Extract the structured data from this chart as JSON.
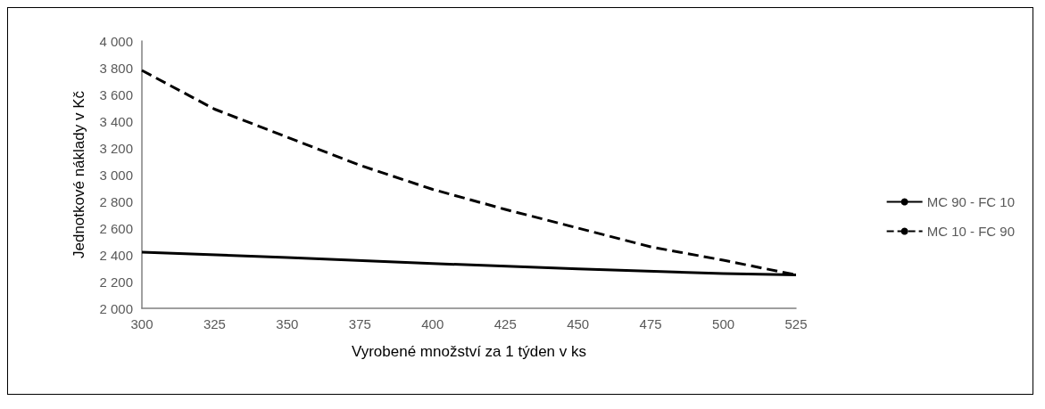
{
  "chart_data": {
    "type": "line",
    "xlabel": "Vyrobené množství za 1 týden v ks",
    "ylabel": "Jednotkové náklady v Kč",
    "xlim": [
      300,
      525
    ],
    "xticks": [
      300,
      325,
      350,
      375,
      400,
      425,
      450,
      475,
      500,
      525
    ],
    "ylim": [
      2000,
      4000
    ],
    "yticks": [
      {
        "value": 2000,
        "label": "2 000"
      },
      {
        "value": 2200,
        "label": "2 200"
      },
      {
        "value": 2400,
        "label": "2 400"
      },
      {
        "value": 2600,
        "label": "2 600"
      },
      {
        "value": 2800,
        "label": "2 800"
      },
      {
        "value": 3000,
        "label": "3 000"
      },
      {
        "value": 3200,
        "label": "3 200"
      },
      {
        "value": 3400,
        "label": "3 400"
      },
      {
        "value": 3600,
        "label": "3 600"
      },
      {
        "value": 3800,
        "label": "3 800"
      },
      {
        "value": 4000,
        "label": "4 000"
      }
    ],
    "grid": false,
    "legend": "right",
    "marker": "none",
    "series": [
      {
        "name": "MC 90 - FC 10",
        "color": "#000000",
        "line_style": "solid",
        "x": [
          300,
          350,
          400,
          450,
          500,
          525
        ],
        "values": [
          2420,
          2380,
          2335,
          2295,
          2260,
          2250
        ]
      },
      {
        "name": "MC 10 - FC 90",
        "color": "#000000",
        "line_style": "dashed",
        "x": [
          300,
          325,
          350,
          375,
          400,
          425,
          450,
          475,
          500,
          525
        ],
        "values": [
          3780,
          3490,
          3280,
          3070,
          2890,
          2740,
          2600,
          2460,
          2360,
          2250
        ]
      }
    ]
  }
}
